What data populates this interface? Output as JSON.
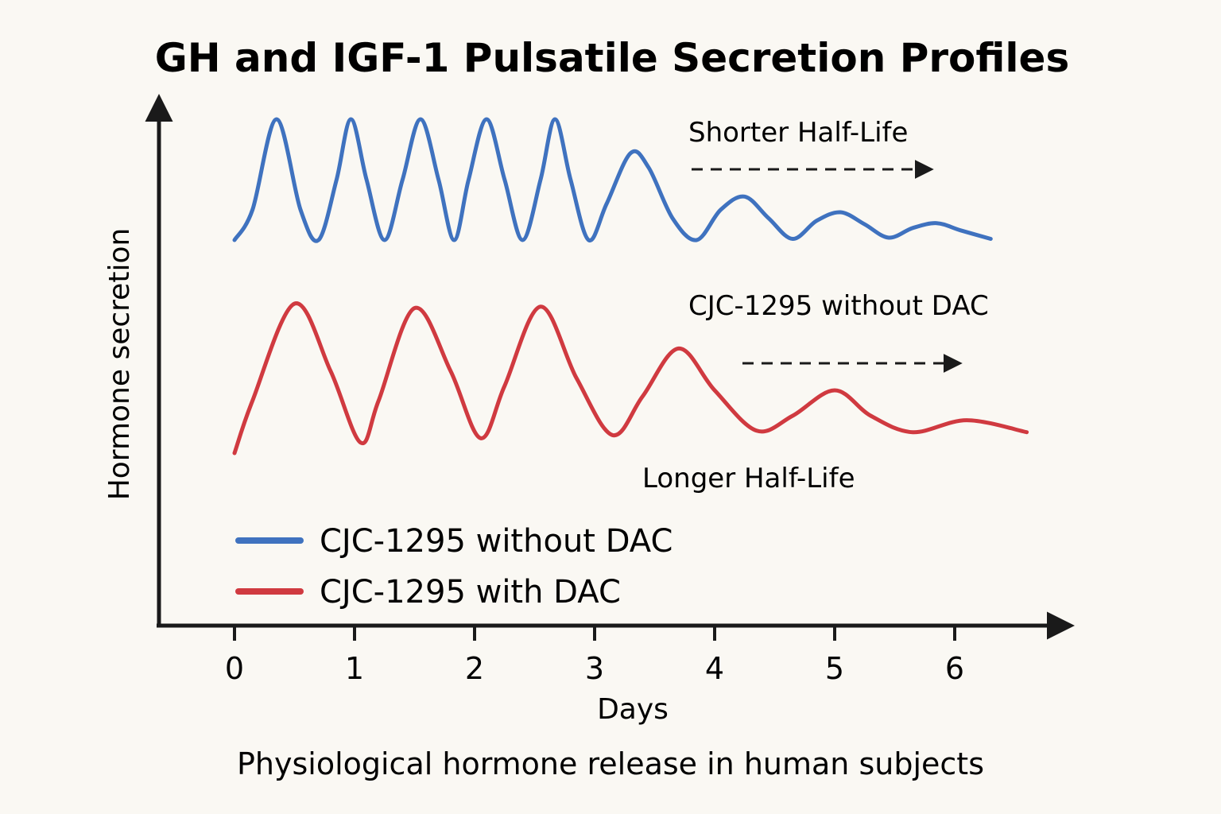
{
  "chart_data": {
    "type": "line",
    "title": "GH and IGF-1 Pulsatile Secretion Profiles",
    "subtitle": "Physiological hormone release in human subjects",
    "xlabel": "Days",
    "ylabel": "Hormone secretion",
    "xticks": [
      "0",
      "1",
      "2",
      "3",
      "4",
      "5",
      "6"
    ],
    "xlim": [
      -0.6,
      6.9
    ],
    "legend_placement": "bottom-left",
    "grid": false,
    "annotations": [
      {
        "text": "Shorter Half-Life",
        "arrow": true,
        "x_start": 3.8,
        "x_end": 5.8,
        "near_series": "CJC-1295 without DAC"
      },
      {
        "text": "CJC-1295 without DAC",
        "arrow": true,
        "x_start": 4.2,
        "x_end": 6.0,
        "near_series": "CJC-1295 with DAC"
      },
      {
        "text": "Longer Half-Life",
        "arrow": false,
        "near_series": "CJC-1295 with DAC"
      }
    ],
    "series": [
      {
        "name": "CJC-1295 without DAC",
        "color": "#3f72bf",
        "x": [
          0.0,
          0.15,
          0.35,
          0.55,
          0.7,
          0.85,
          0.97,
          1.1,
          1.25,
          1.4,
          1.55,
          1.7,
          1.83,
          1.95,
          2.1,
          2.25,
          2.4,
          2.55,
          2.67,
          2.8,
          2.95,
          3.1,
          3.3,
          3.45,
          3.65,
          3.85,
          4.05,
          4.25,
          4.45,
          4.65,
          4.85,
          5.05,
          5.25,
          5.45,
          5.65,
          5.85,
          6.05,
          6.3
        ],
        "y": [
          0.0,
          0.25,
          1.0,
          0.25,
          0.0,
          0.5,
          1.0,
          0.5,
          0.0,
          0.5,
          1.0,
          0.5,
          0.0,
          0.5,
          1.0,
          0.5,
          0.0,
          0.5,
          1.0,
          0.5,
          0.0,
          0.3,
          0.72,
          0.6,
          0.18,
          0.0,
          0.25,
          0.36,
          0.18,
          0.01,
          0.16,
          0.23,
          0.13,
          0.02,
          0.1,
          0.14,
          0.08,
          0.01
        ]
      },
      {
        "name": "CJC-1295 with DAC",
        "color": "#d03a40",
        "x": [
          0.0,
          0.15,
          0.5,
          0.8,
          1.05,
          1.2,
          1.5,
          1.8,
          2.05,
          2.25,
          2.55,
          2.85,
          3.15,
          3.4,
          3.7,
          4.0,
          4.35,
          4.65,
          5.0,
          5.3,
          5.65,
          6.1,
          6.6
        ],
        "y": [
          0.0,
          0.35,
          1.0,
          0.55,
          0.07,
          0.35,
          0.97,
          0.55,
          0.1,
          0.45,
          0.98,
          0.5,
          0.12,
          0.38,
          0.7,
          0.42,
          0.15,
          0.25,
          0.42,
          0.25,
          0.14,
          0.22,
          0.14
        ]
      }
    ]
  }
}
